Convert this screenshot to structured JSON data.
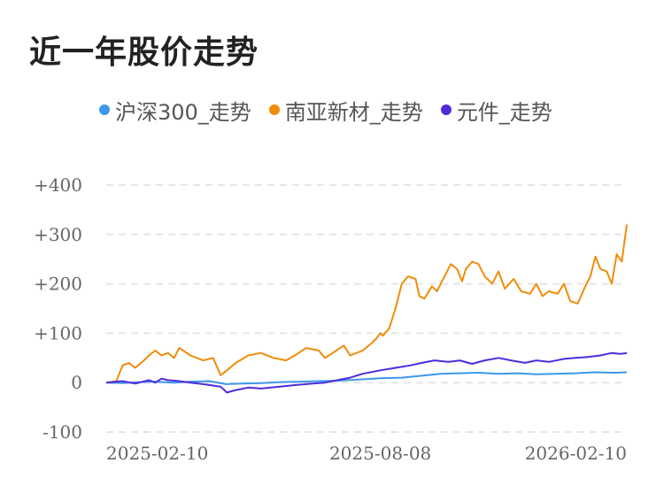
{
  "title": "近一年股价走势",
  "chart_data": {
    "type": "line",
    "title": "近一年股价走势",
    "xlabel": "",
    "ylabel": "",
    "x_ticks": [
      "2025-02-10",
      "2025-08-08",
      "2026-02-10"
    ],
    "y_ticks": [
      "+400",
      "+300",
      "+200",
      "+100",
      "0",
      "-100"
    ],
    "y_tick_values": [
      400,
      300,
      200,
      100,
      0,
      -100
    ],
    "ylim": [
      -100,
      400
    ],
    "x_range": [
      "2025-01-02",
      "2026-02-20"
    ],
    "grid": true,
    "legend_position": "top",
    "series": [
      {
        "name": "沪深300_走势",
        "color": "#3d97ea",
        "x": [
          "2025-01-02",
          "2025-01-15",
          "2025-01-27",
          "2025-02-10",
          "2025-02-25",
          "2025-03-10",
          "2025-03-25",
          "2025-04-07",
          "2025-04-20",
          "2025-05-05",
          "2025-05-20",
          "2025-06-05",
          "2025-06-20",
          "2025-07-05",
          "2025-07-20",
          "2025-08-08",
          "2025-08-25",
          "2025-09-10",
          "2025-09-25",
          "2025-10-10",
          "2025-10-25",
          "2025-11-10",
          "2025-11-25",
          "2025-12-10",
          "2025-12-25",
          "2026-01-10",
          "2026-01-25",
          "2026-02-10",
          "2026-02-20"
        ],
        "values": [
          0,
          -1,
          1,
          2,
          0,
          2,
          3,
          -3,
          -2,
          -1,
          1,
          2,
          3,
          4,
          6,
          9,
          10,
          14,
          18,
          19,
          20,
          18,
          19,
          17,
          18,
          19,
          21,
          20,
          21
        ]
      },
      {
        "name": "南亚新材_走势",
        "color": "#f08c0a",
        "x": [
          "2025-01-02",
          "2025-01-10",
          "2025-01-15",
          "2025-01-20",
          "2025-01-25",
          "2025-02-01",
          "2025-02-05",
          "2025-02-10",
          "2025-02-15",
          "2025-02-20",
          "2025-02-25",
          "2025-03-01",
          "2025-03-10",
          "2025-03-20",
          "2025-03-28",
          "2025-04-03",
          "2025-04-08",
          "2025-04-15",
          "2025-04-25",
          "2025-05-05",
          "2025-05-15",
          "2025-05-25",
          "2025-06-01",
          "2025-06-10",
          "2025-06-20",
          "2025-06-25",
          "2025-07-01",
          "2025-07-10",
          "2025-07-15",
          "2025-07-25",
          "2025-08-01",
          "2025-08-05",
          "2025-08-08",
          "2025-08-10",
          "2025-08-15",
          "2025-08-20",
          "2025-08-25",
          "2025-08-30",
          "2025-09-05",
          "2025-09-08",
          "2025-09-12",
          "2025-09-18",
          "2025-09-22",
          "2025-09-28",
          "2025-10-03",
          "2025-10-08",
          "2025-10-12",
          "2025-10-15",
          "2025-10-20",
          "2025-10-25",
          "2025-10-30",
          "2025-11-05",
          "2025-11-10",
          "2025-11-15",
          "2025-11-22",
          "2025-11-28",
          "2025-12-05",
          "2025-12-10",
          "2025-12-15",
          "2025-12-20",
          "2025-12-27",
          "2026-01-01",
          "2026-01-06",
          "2026-01-12",
          "2026-01-18",
          "2026-01-22",
          "2026-01-26",
          "2026-01-30",
          "2026-02-04",
          "2026-02-08",
          "2026-02-12",
          "2026-02-16",
          "2026-02-20"
        ],
        "values": [
          0,
          3,
          35,
          40,
          30,
          45,
          55,
          65,
          55,
          60,
          50,
          70,
          55,
          45,
          50,
          15,
          25,
          40,
          55,
          60,
          50,
          45,
          55,
          70,
          65,
          50,
          60,
          75,
          55,
          65,
          80,
          90,
          100,
          95,
          110,
          150,
          200,
          215,
          210,
          175,
          170,
          195,
          185,
          215,
          240,
          230,
          205,
          230,
          245,
          240,
          215,
          200,
          225,
          190,
          210,
          185,
          180,
          200,
          175,
          185,
          180,
          200,
          165,
          160,
          195,
          215,
          255,
          230,
          225,
          200,
          260,
          245,
          320
        ]
      },
      {
        "name": "元件_走势",
        "color": "#4f2bdc",
        "x": [
          "2025-01-02",
          "2025-01-15",
          "2025-01-25",
          "2025-02-05",
          "2025-02-10",
          "2025-02-15",
          "2025-02-20",
          "2025-03-01",
          "2025-03-10",
          "2025-03-20",
          "2025-04-03",
          "2025-04-08",
          "2025-04-15",
          "2025-04-25",
          "2025-05-05",
          "2025-05-20",
          "2025-06-01",
          "2025-06-15",
          "2025-06-25",
          "2025-07-05",
          "2025-07-15",
          "2025-07-25",
          "2025-08-08",
          "2025-08-20",
          "2025-09-01",
          "2025-09-10",
          "2025-09-20",
          "2025-10-01",
          "2025-10-10",
          "2025-10-20",
          "2025-10-30",
          "2025-11-10",
          "2025-11-20",
          "2025-12-01",
          "2025-12-10",
          "2025-12-20",
          "2026-01-01",
          "2026-01-10",
          "2026-01-20",
          "2026-01-30",
          "2026-02-08",
          "2026-02-15",
          "2026-02-20"
        ],
        "values": [
          0,
          3,
          -2,
          5,
          0,
          8,
          5,
          3,
          0,
          -3,
          -8,
          -20,
          -15,
          -10,
          -12,
          -8,
          -5,
          -2,
          0,
          5,
          10,
          18,
          25,
          30,
          35,
          40,
          45,
          42,
          45,
          38,
          45,
          50,
          45,
          40,
          45,
          42,
          48,
          50,
          52,
          55,
          60,
          58,
          60
        ]
      }
    ]
  }
}
